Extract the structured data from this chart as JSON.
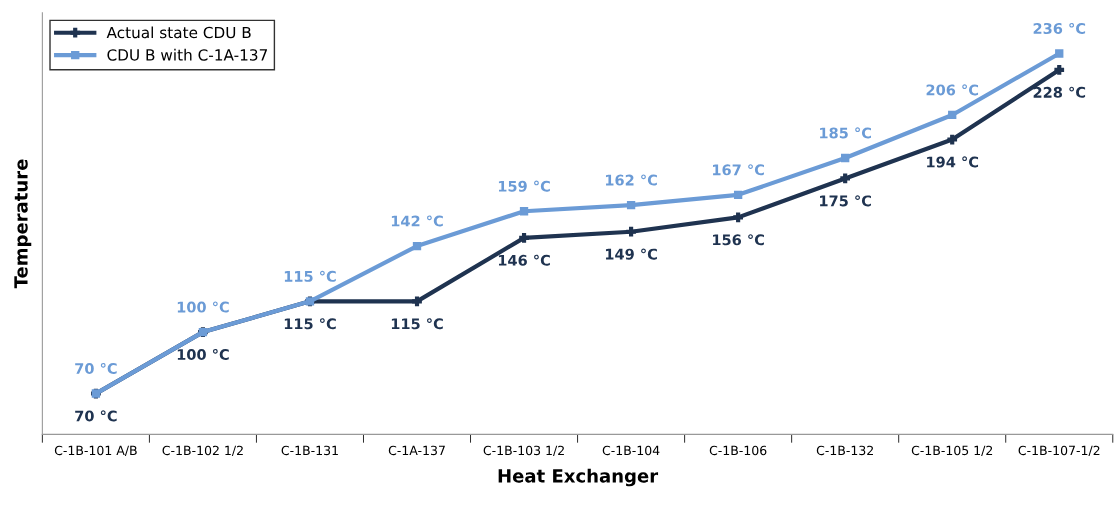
{
  "chart_data": {
    "type": "line",
    "xlabel": "Heat Exchanger",
    "ylabel": "Temperature",
    "categories": [
      "C-1B-101 A/B",
      "C-1B-102 1/2",
      "C-1B-131",
      "C-1A-137",
      "C-1B-103 1/2",
      "C-1B-104",
      "C-1B-106",
      "C-1B-132",
      "C-1B-105 1/2",
      "C-1B-107-1/2"
    ],
    "series": [
      {
        "name": "Actual state CDU B",
        "color": "#1f3350",
        "marker": "cross",
        "values": [
          70,
          100,
          115,
          115,
          146,
          149,
          156,
          175,
          194,
          228
        ],
        "value_labels": [
          "70 °C",
          "100 °C",
          "115 °C",
          "115 °C",
          "146 °C",
          "149 °C",
          "156 °C",
          "175 °C",
          "194 °C",
          "228 °C"
        ]
      },
      {
        "name": "CDU B with C-1A-137",
        "color": "#6b9bd6",
        "marker": "square",
        "values": [
          70,
          100,
          115,
          142,
          159,
          162,
          167,
          185,
          206,
          236
        ],
        "value_labels": [
          "70 °C",
          "100 °C",
          "115 °C",
          "142 °C",
          "159 °C",
          "162 °C",
          "167 °C",
          "185 °C",
          "206 °C",
          "236 °C"
        ]
      }
    ],
    "relative": false,
    "legend": "top left",
    "grid": false,
    "tick_labels": "x",
    "line_style": "solid"
  }
}
